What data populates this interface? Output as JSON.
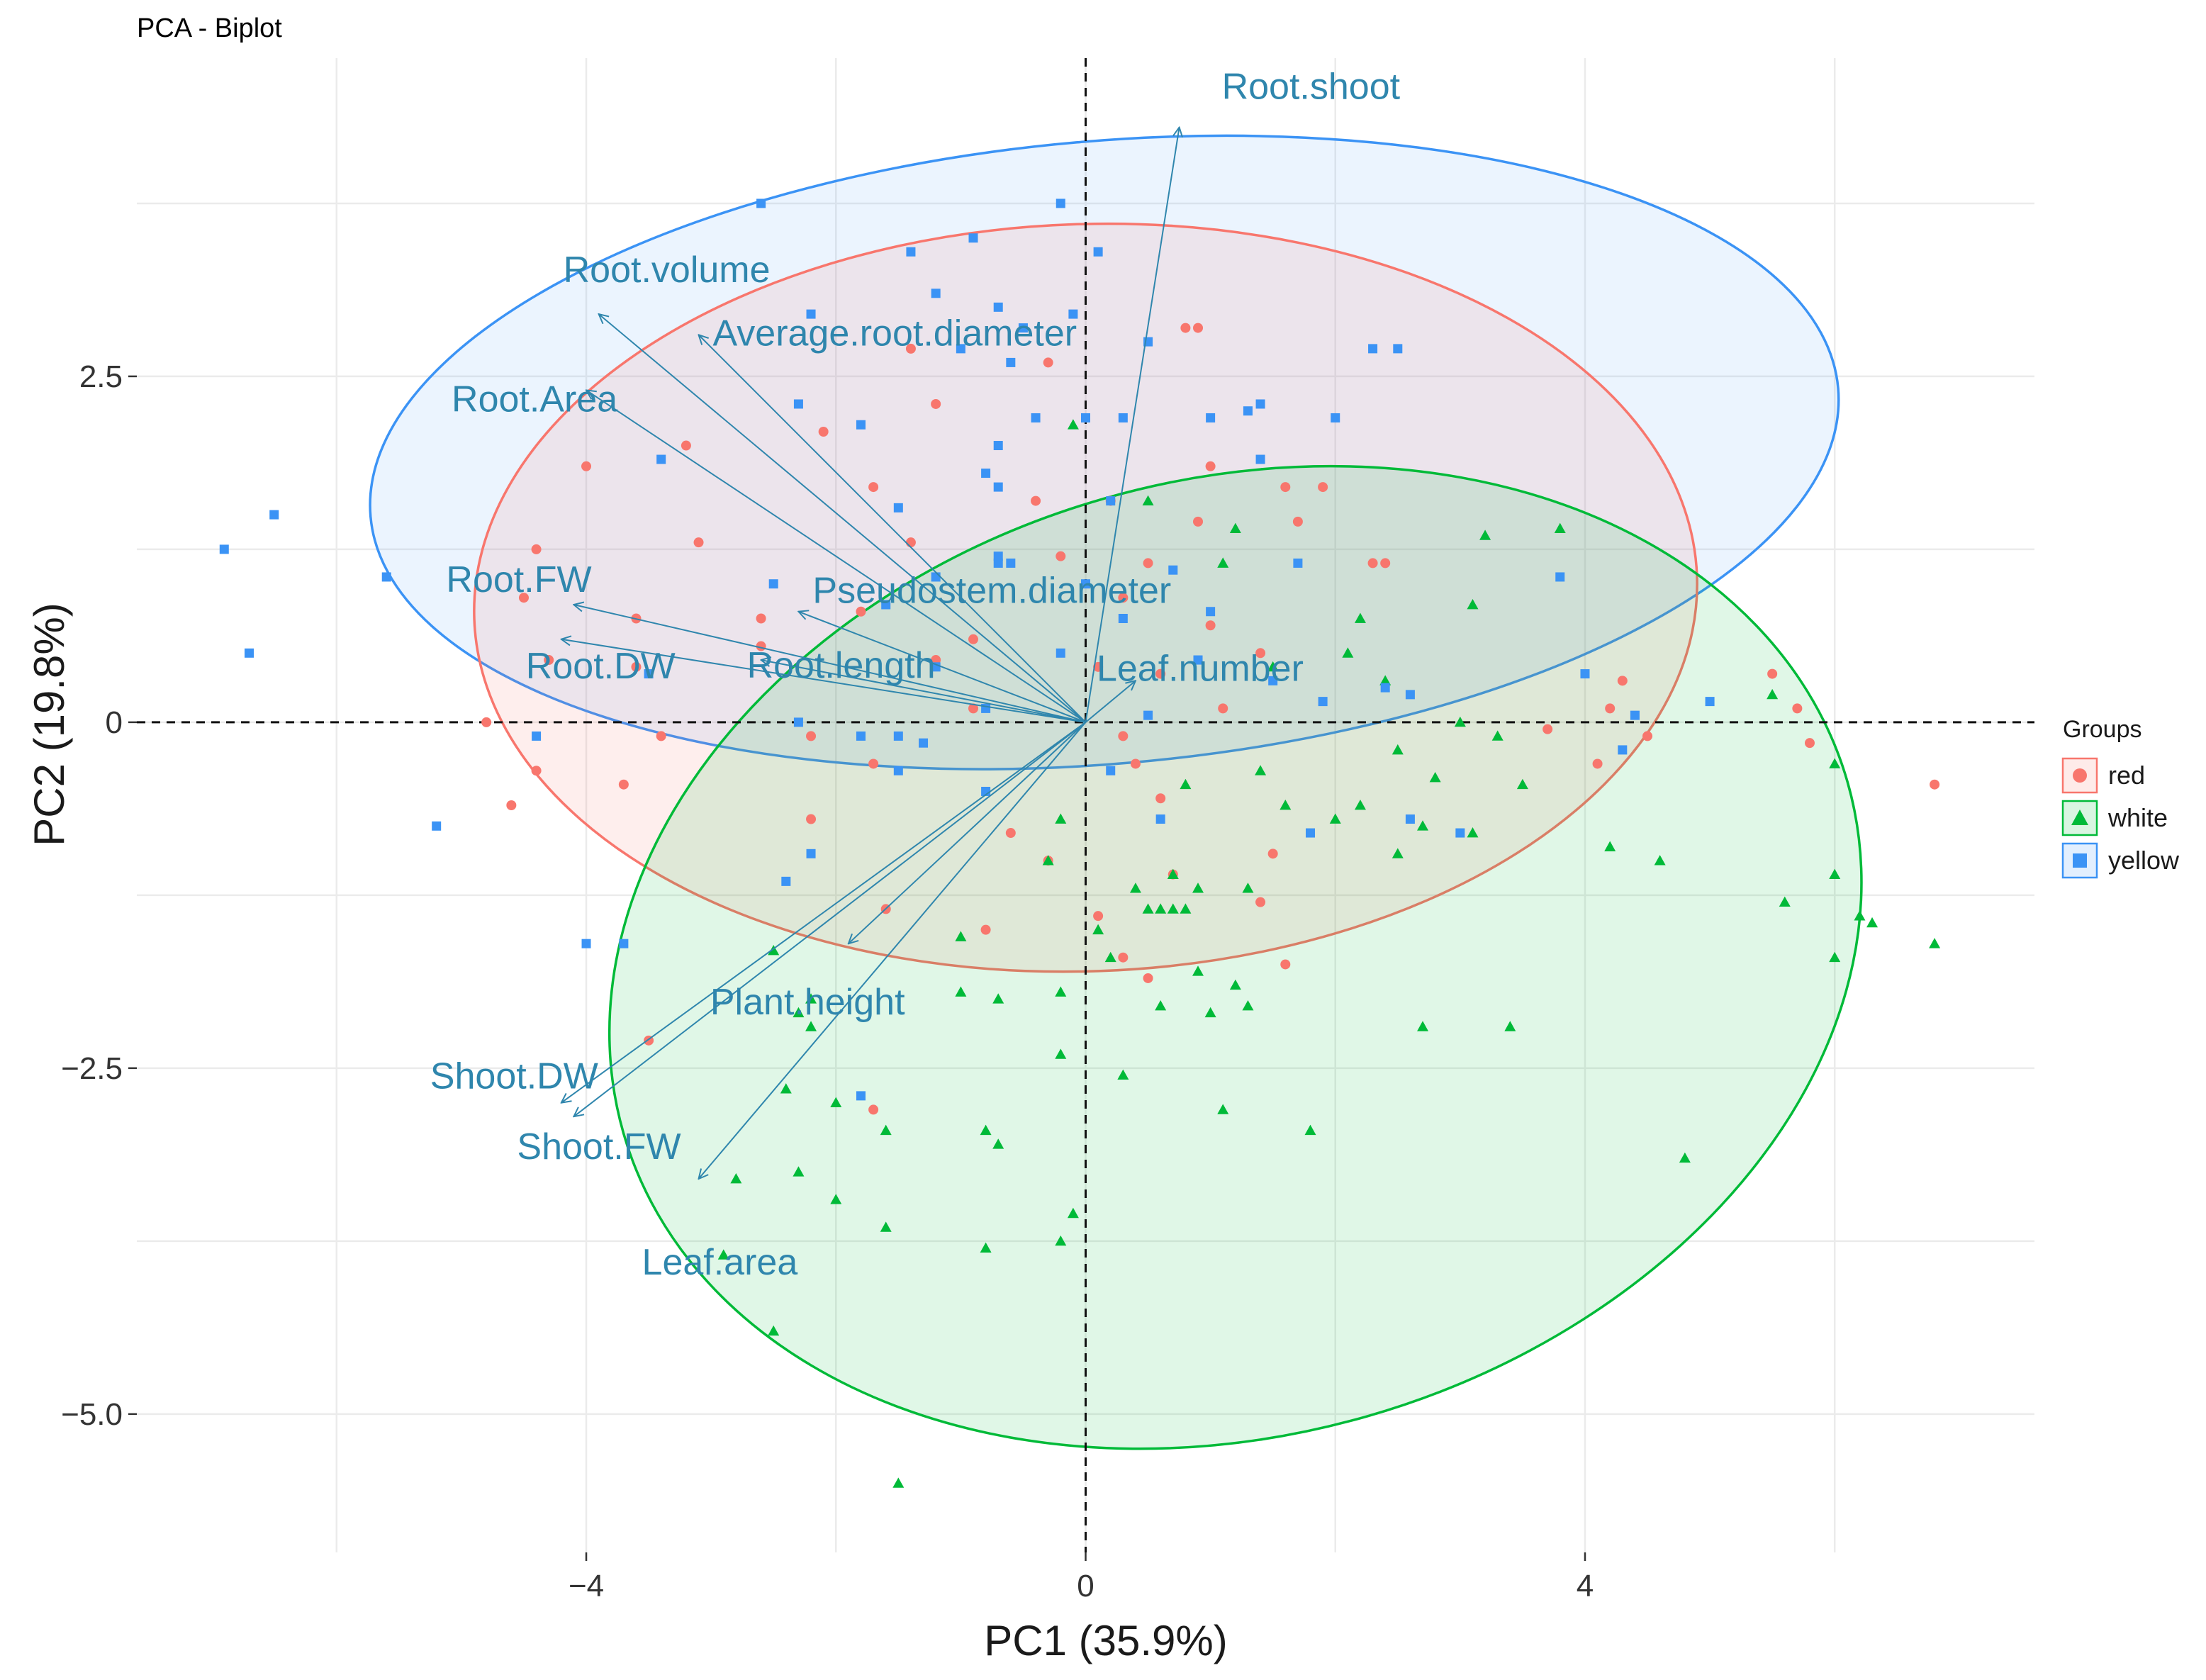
{
  "chart_data": {
    "type": "scatter",
    "subtype": "pca-biplot",
    "title": "PCA - Biplot",
    "xlabel": "PC1 (35.9%)",
    "ylabel": "PC2 (19.8%)",
    "xlim": [
      -7.6,
      7.6
    ],
    "ylim": [
      -6.0,
      4.8
    ],
    "x_ticks": [
      -4,
      0,
      4
    ],
    "x_tick_labels": [
      "−4",
      "0",
      "4"
    ],
    "y_ticks": [
      2.5,
      0,
      -2.5,
      -5.0
    ],
    "y_tick_labels": [
      "2.5",
      "0",
      "−2.5",
      "−5.0"
    ],
    "grid": true,
    "reference_lines": {
      "x": 0,
      "y": 0,
      "style": "dashed"
    },
    "legend": {
      "title": "Groups",
      "placement": "right",
      "entries": [
        {
          "label": "red",
          "color": "#F8766D",
          "shape": "circle"
        },
        {
          "label": "white",
          "color": "#00BA38",
          "shape": "triangle"
        },
        {
          "label": "yellow",
          "color": "#3B93F5",
          "shape": "square"
        }
      ]
    },
    "variables": [
      {
        "name": "Root.shoot",
        "x": 0.75,
        "y": 4.3
      },
      {
        "name": "Root.volume",
        "x": -3.9,
        "y": 2.95
      },
      {
        "name": "Average.root.diameter",
        "x": -3.1,
        "y": 2.8
      },
      {
        "name": "Root.Area",
        "x": -4.0,
        "y": 2.4
      },
      {
        "name": "Root.FW",
        "x": -4.1,
        "y": 0.85
      },
      {
        "name": "Pseudostem.diameter",
        "x": -2.3,
        "y": 0.8
      },
      {
        "name": "Root.DW",
        "x": -4.2,
        "y": 0.6
      },
      {
        "name": "Root.length",
        "x": -2.6,
        "y": 0.45
      },
      {
        "name": "Leaf.number",
        "x": 0.4,
        "y": 0.3
      },
      {
        "name": "Plant.height",
        "x": -1.9,
        "y": -1.6
      },
      {
        "name": "Shoot.DW",
        "x": -4.2,
        "y": -2.75
      },
      {
        "name": "Shoot.FW",
        "x": -4.1,
        "y": -2.85
      },
      {
        "name": "Leaf.area",
        "x": -3.1,
        "y": -3.3
      }
    ],
    "ellipses": [
      {
        "group": "yellow",
        "color": "#3B93F5",
        "fill": "rgba(59,147,245,0.10)",
        "cx": 0.15,
        "cy": 1.95,
        "rx": 5.9,
        "ry": 2.25,
        "angle_deg": 5
      },
      {
        "group": "red",
        "color": "#F8766D",
        "fill": "rgba(248,118,109,0.12)",
        "cx": 0.0,
        "cy": 0.9,
        "rx": 4.9,
        "ry": 2.7,
        "angle_deg": 2
      },
      {
        "group": "white",
        "color": "#00BA38",
        "fill": "rgba(0,186,56,0.12)",
        "cx": 1.2,
        "cy": -1.7,
        "rx": 5.1,
        "ry": 3.45,
        "angle_deg": 16
      }
    ],
    "series": [
      {
        "name": "red",
        "shape": "circle",
        "color": "#F8766D",
        "points": [
          [
            -1.4,
            2.7
          ],
          [
            -0.3,
            2.6
          ],
          [
            -1.2,
            2.3
          ],
          [
            -2.1,
            2.1
          ],
          [
            -3.2,
            2.0
          ],
          [
            -4.0,
            1.85
          ],
          [
            -1.7,
            1.7
          ],
          [
            -0.4,
            1.6
          ],
          [
            0.2,
            1.6
          ],
          [
            1.6,
            1.7
          ],
          [
            0.9,
            1.45
          ],
          [
            1.7,
            1.45
          ],
          [
            -4.4,
            1.25
          ],
          [
            -3.1,
            1.3
          ],
          [
            -1.4,
            1.3
          ],
          [
            -0.2,
            1.2
          ],
          [
            0.5,
            1.15
          ],
          [
            2.3,
            1.15
          ],
          [
            -4.5,
            0.9
          ],
          [
            -3.6,
            0.75
          ],
          [
            -2.6,
            0.75
          ],
          [
            -1.8,
            0.8
          ],
          [
            -0.9,
            0.6
          ],
          [
            0.3,
            0.9
          ],
          [
            1.0,
            0.7
          ],
          [
            -4.3,
            0.45
          ],
          [
            -3.6,
            0.4
          ],
          [
            -2.6,
            0.55
          ],
          [
            -1.2,
            0.45
          ],
          [
            0.1,
            0.4
          ],
          [
            0.6,
            0.35
          ],
          [
            1.4,
            0.5
          ],
          [
            -4.8,
            0.0
          ],
          [
            -3.4,
            -0.1
          ],
          [
            -2.2,
            -0.1
          ],
          [
            -0.9,
            0.1
          ],
          [
            0.3,
            -0.1
          ],
          [
            1.1,
            0.1
          ],
          [
            3.7,
            -0.05
          ],
          [
            -4.4,
            -0.35
          ],
          [
            -3.7,
            -0.45
          ],
          [
            -1.7,
            -0.3
          ],
          [
            0.4,
            -0.3
          ],
          [
            -4.6,
            -0.6
          ],
          [
            -2.2,
            -0.7
          ],
          [
            -0.6,
            -0.8
          ],
          [
            0.6,
            -0.55
          ],
          [
            -0.3,
            -1.0
          ],
          [
            0.7,
            -1.1
          ],
          [
            1.5,
            -0.95
          ],
          [
            -1.6,
            -1.35
          ],
          [
            0.1,
            -1.4
          ],
          [
            1.4,
            -1.3
          ],
          [
            -0.8,
            -1.5
          ],
          [
            0.3,
            -1.7
          ],
          [
            1.6,
            -1.75
          ],
          [
            -3.5,
            -2.3
          ],
          [
            -1.7,
            -2.8
          ],
          [
            0.5,
            -1.85
          ],
          [
            0.9,
            2.85
          ],
          [
            0.8,
            2.85
          ],
          [
            1.0,
            1.85
          ],
          [
            1.9,
            1.7
          ],
          [
            2.4,
            1.15
          ],
          [
            4.3,
            0.3
          ],
          [
            5.5,
            0.35
          ],
          [
            5.7,
            0.1
          ],
          [
            6.8,
            -0.45
          ],
          [
            5.8,
            -0.15
          ],
          [
            4.1,
            -0.3
          ],
          [
            4.5,
            -0.1
          ],
          [
            4.2,
            0.1
          ]
        ]
      },
      {
        "name": "white",
        "shape": "triangle",
        "color": "#00BA38",
        "points": [
          [
            -0.1,
            2.15
          ],
          [
            0.5,
            1.6
          ],
          [
            1.2,
            1.4
          ],
          [
            1.1,
            1.15
          ],
          [
            3.2,
            1.35
          ],
          [
            3.8,
            1.4
          ],
          [
            2.2,
            0.75
          ],
          [
            2.1,
            0.5
          ],
          [
            1.5,
            0.4
          ],
          [
            3.1,
            0.85
          ],
          [
            2.4,
            0.3
          ],
          [
            3.0,
            0.0
          ],
          [
            2.5,
            -0.2
          ],
          [
            2.8,
            -0.4
          ],
          [
            3.5,
            -0.45
          ],
          [
            1.4,
            -0.35
          ],
          [
            0.8,
            -0.45
          ],
          [
            1.6,
            -0.6
          ],
          [
            2.0,
            -0.7
          ],
          [
            2.2,
            -0.6
          ],
          [
            2.7,
            -0.75
          ],
          [
            3.1,
            -0.8
          ],
          [
            2.5,
            -0.95
          ],
          [
            -0.2,
            -0.7
          ],
          [
            -0.3,
            -1.0
          ],
          [
            0.4,
            -1.2
          ],
          [
            0.7,
            -1.1
          ],
          [
            0.9,
            -1.2
          ],
          [
            1.3,
            -1.2
          ],
          [
            0.1,
            -1.5
          ],
          [
            0.5,
            -1.35
          ],
          [
            0.7,
            -1.35
          ],
          [
            0.6,
            -1.35
          ],
          [
            0.8,
            -1.35
          ],
          [
            0.2,
            -1.7
          ],
          [
            0.9,
            -1.8
          ],
          [
            1.2,
            -1.9
          ],
          [
            -0.2,
            -1.95
          ],
          [
            -0.7,
            -2.0
          ],
          [
            -1.0,
            -1.95
          ],
          [
            0.6,
            -2.05
          ],
          [
            1.0,
            -2.1
          ],
          [
            1.3,
            -2.05
          ],
          [
            -2.2,
            -2.2
          ],
          [
            -2.3,
            -2.1
          ],
          [
            -2.5,
            -1.65
          ],
          [
            -2.2,
            -2.0
          ],
          [
            -2.4,
            -2.65
          ],
          [
            -0.2,
            -2.4
          ],
          [
            0.3,
            -2.55
          ],
          [
            1.1,
            -2.8
          ],
          [
            -2.0,
            -2.75
          ],
          [
            -1.6,
            -2.95
          ],
          [
            -0.8,
            -2.95
          ],
          [
            -0.7,
            -3.05
          ],
          [
            1.8,
            -2.95
          ],
          [
            -2.3,
            -3.25
          ],
          [
            -2.8,
            -3.3
          ],
          [
            -2.0,
            -3.45
          ],
          [
            -1.6,
            -3.65
          ],
          [
            -0.1,
            -3.55
          ],
          [
            -0.2,
            -3.75
          ],
          [
            -0.8,
            -3.8
          ],
          [
            -2.9,
            -3.85
          ],
          [
            -2.5,
            -4.4
          ],
          [
            -1.5,
            -5.5
          ],
          [
            2.7,
            -2.2
          ],
          [
            3.4,
            -2.2
          ],
          [
            4.8,
            -3.15
          ],
          [
            5.6,
            -1.3
          ],
          [
            6.0,
            -1.1
          ],
          [
            6.2,
            -1.4
          ],
          [
            6.3,
            -1.45
          ],
          [
            6.0,
            -1.7
          ],
          [
            6.8,
            -1.6
          ],
          [
            5.5,
            0.2
          ],
          [
            6.0,
            -0.3
          ],
          [
            4.6,
            -1.0
          ],
          [
            4.2,
            -0.9
          ],
          [
            -1.0,
            -1.55
          ],
          [
            3.3,
            -0.1
          ]
        ]
      },
      {
        "name": "yellow",
        "shape": "square",
        "color": "#3B93F5",
        "points": [
          [
            -2.6,
            3.75
          ],
          [
            -0.2,
            3.75
          ],
          [
            -0.9,
            3.5
          ],
          [
            -1.4,
            3.4
          ],
          [
            0.1,
            3.4
          ],
          [
            -1.2,
            3.1
          ],
          [
            -0.7,
            3.0
          ],
          [
            -2.2,
            2.95
          ],
          [
            -0.5,
            2.85
          ],
          [
            -0.1,
            2.95
          ],
          [
            -1.0,
            2.7
          ],
          [
            -0.6,
            2.6
          ],
          [
            0.5,
            2.75
          ],
          [
            -2.3,
            2.3
          ],
          [
            -1.8,
            2.15
          ],
          [
            -0.4,
            2.2
          ],
          [
            0.3,
            2.2
          ],
          [
            1.0,
            2.2
          ],
          [
            1.3,
            2.25
          ],
          [
            1.4,
            2.3
          ],
          [
            2.0,
            2.2
          ],
          [
            2.3,
            2.7
          ],
          [
            2.5,
            2.7
          ],
          [
            -3.4,
            1.9
          ],
          [
            -0.8,
            1.8
          ],
          [
            -0.7,
            1.7
          ],
          [
            -1.5,
            1.55
          ],
          [
            0.2,
            1.6
          ],
          [
            1.4,
            1.9
          ],
          [
            -6.9,
            1.25
          ],
          [
            -6.5,
            1.5
          ],
          [
            -5.6,
            1.05
          ],
          [
            -6.7,
            0.5
          ],
          [
            -2.5,
            1.0
          ],
          [
            -1.2,
            1.05
          ],
          [
            -0.7,
            1.15
          ],
          [
            -0.6,
            1.15
          ],
          [
            0.0,
            1.0
          ],
          [
            0.7,
            1.1
          ],
          [
            1.7,
            1.15
          ],
          [
            -1.6,
            0.85
          ],
          [
            0.3,
            0.75
          ],
          [
            1.0,
            0.8
          ],
          [
            3.8,
            1.05
          ],
          [
            -3.5,
            0.35
          ],
          [
            -1.2,
            0.4
          ],
          [
            -0.2,
            0.5
          ],
          [
            0.9,
            0.45
          ],
          [
            1.5,
            0.3
          ],
          [
            2.6,
            0.2
          ],
          [
            -2.3,
            0.0
          ],
          [
            -1.5,
            -0.1
          ],
          [
            -0.8,
            0.1
          ],
          [
            0.5,
            0.05
          ],
          [
            1.9,
            0.15
          ],
          [
            4.0,
            0.35
          ],
          [
            5.0,
            0.15
          ],
          [
            -4.4,
            -0.1
          ],
          [
            -1.8,
            -0.1
          ],
          [
            -1.3,
            -0.15
          ],
          [
            -1.5,
            -0.35
          ],
          [
            0.2,
            -0.35
          ],
          [
            -0.8,
            -0.5
          ],
          [
            0.6,
            -0.7
          ],
          [
            1.8,
            -0.8
          ],
          [
            2.6,
            -0.7
          ],
          [
            3.0,
            -0.8
          ],
          [
            -5.2,
            -0.75
          ],
          [
            -2.2,
            -0.95
          ],
          [
            -2.4,
            -1.15
          ],
          [
            -3.7,
            -1.6
          ],
          [
            -1.8,
            -2.7
          ],
          [
            -4.0,
            -1.6
          ],
          [
            4.3,
            -0.2
          ],
          [
            4.4,
            0.05
          ],
          [
            -0.7,
            2.0
          ],
          [
            -0.7,
            1.2
          ],
          [
            0.0,
            2.2
          ],
          [
            2.4,
            0.25
          ]
        ]
      }
    ]
  }
}
